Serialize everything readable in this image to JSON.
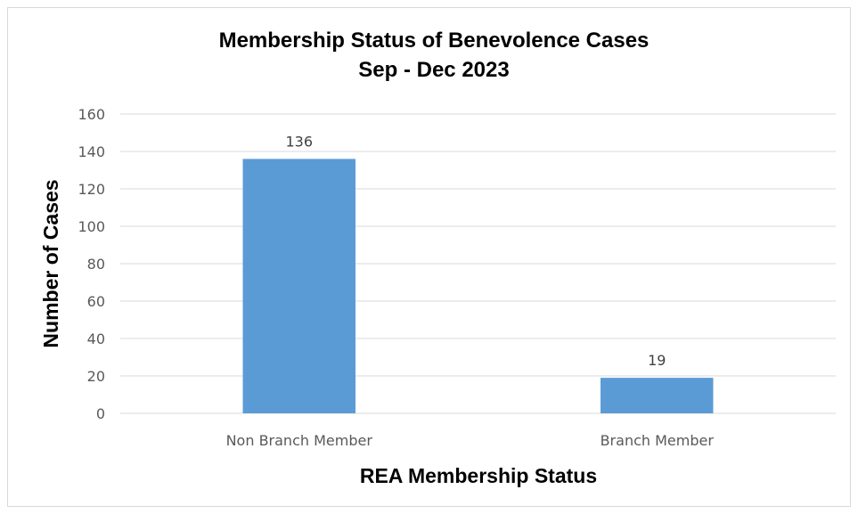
{
  "chart_data": {
    "type": "bar",
    "title": "Membership Status of Benevolence Cases",
    "subtitle": "Sep - Dec 2023",
    "xlabel": "REA Membership Status",
    "ylabel": "Number of Cases",
    "categories": [
      "Non Branch Member",
      "Branch Member"
    ],
    "values": [
      136,
      19
    ],
    "data_labels": [
      "136",
      "19"
    ],
    "ylim": [
      0,
      160
    ],
    "y_ticks": [
      0,
      20,
      40,
      60,
      80,
      100,
      120,
      140,
      160
    ],
    "grid": true,
    "legend": "none",
    "bar_color": "#5b9bd5"
  }
}
